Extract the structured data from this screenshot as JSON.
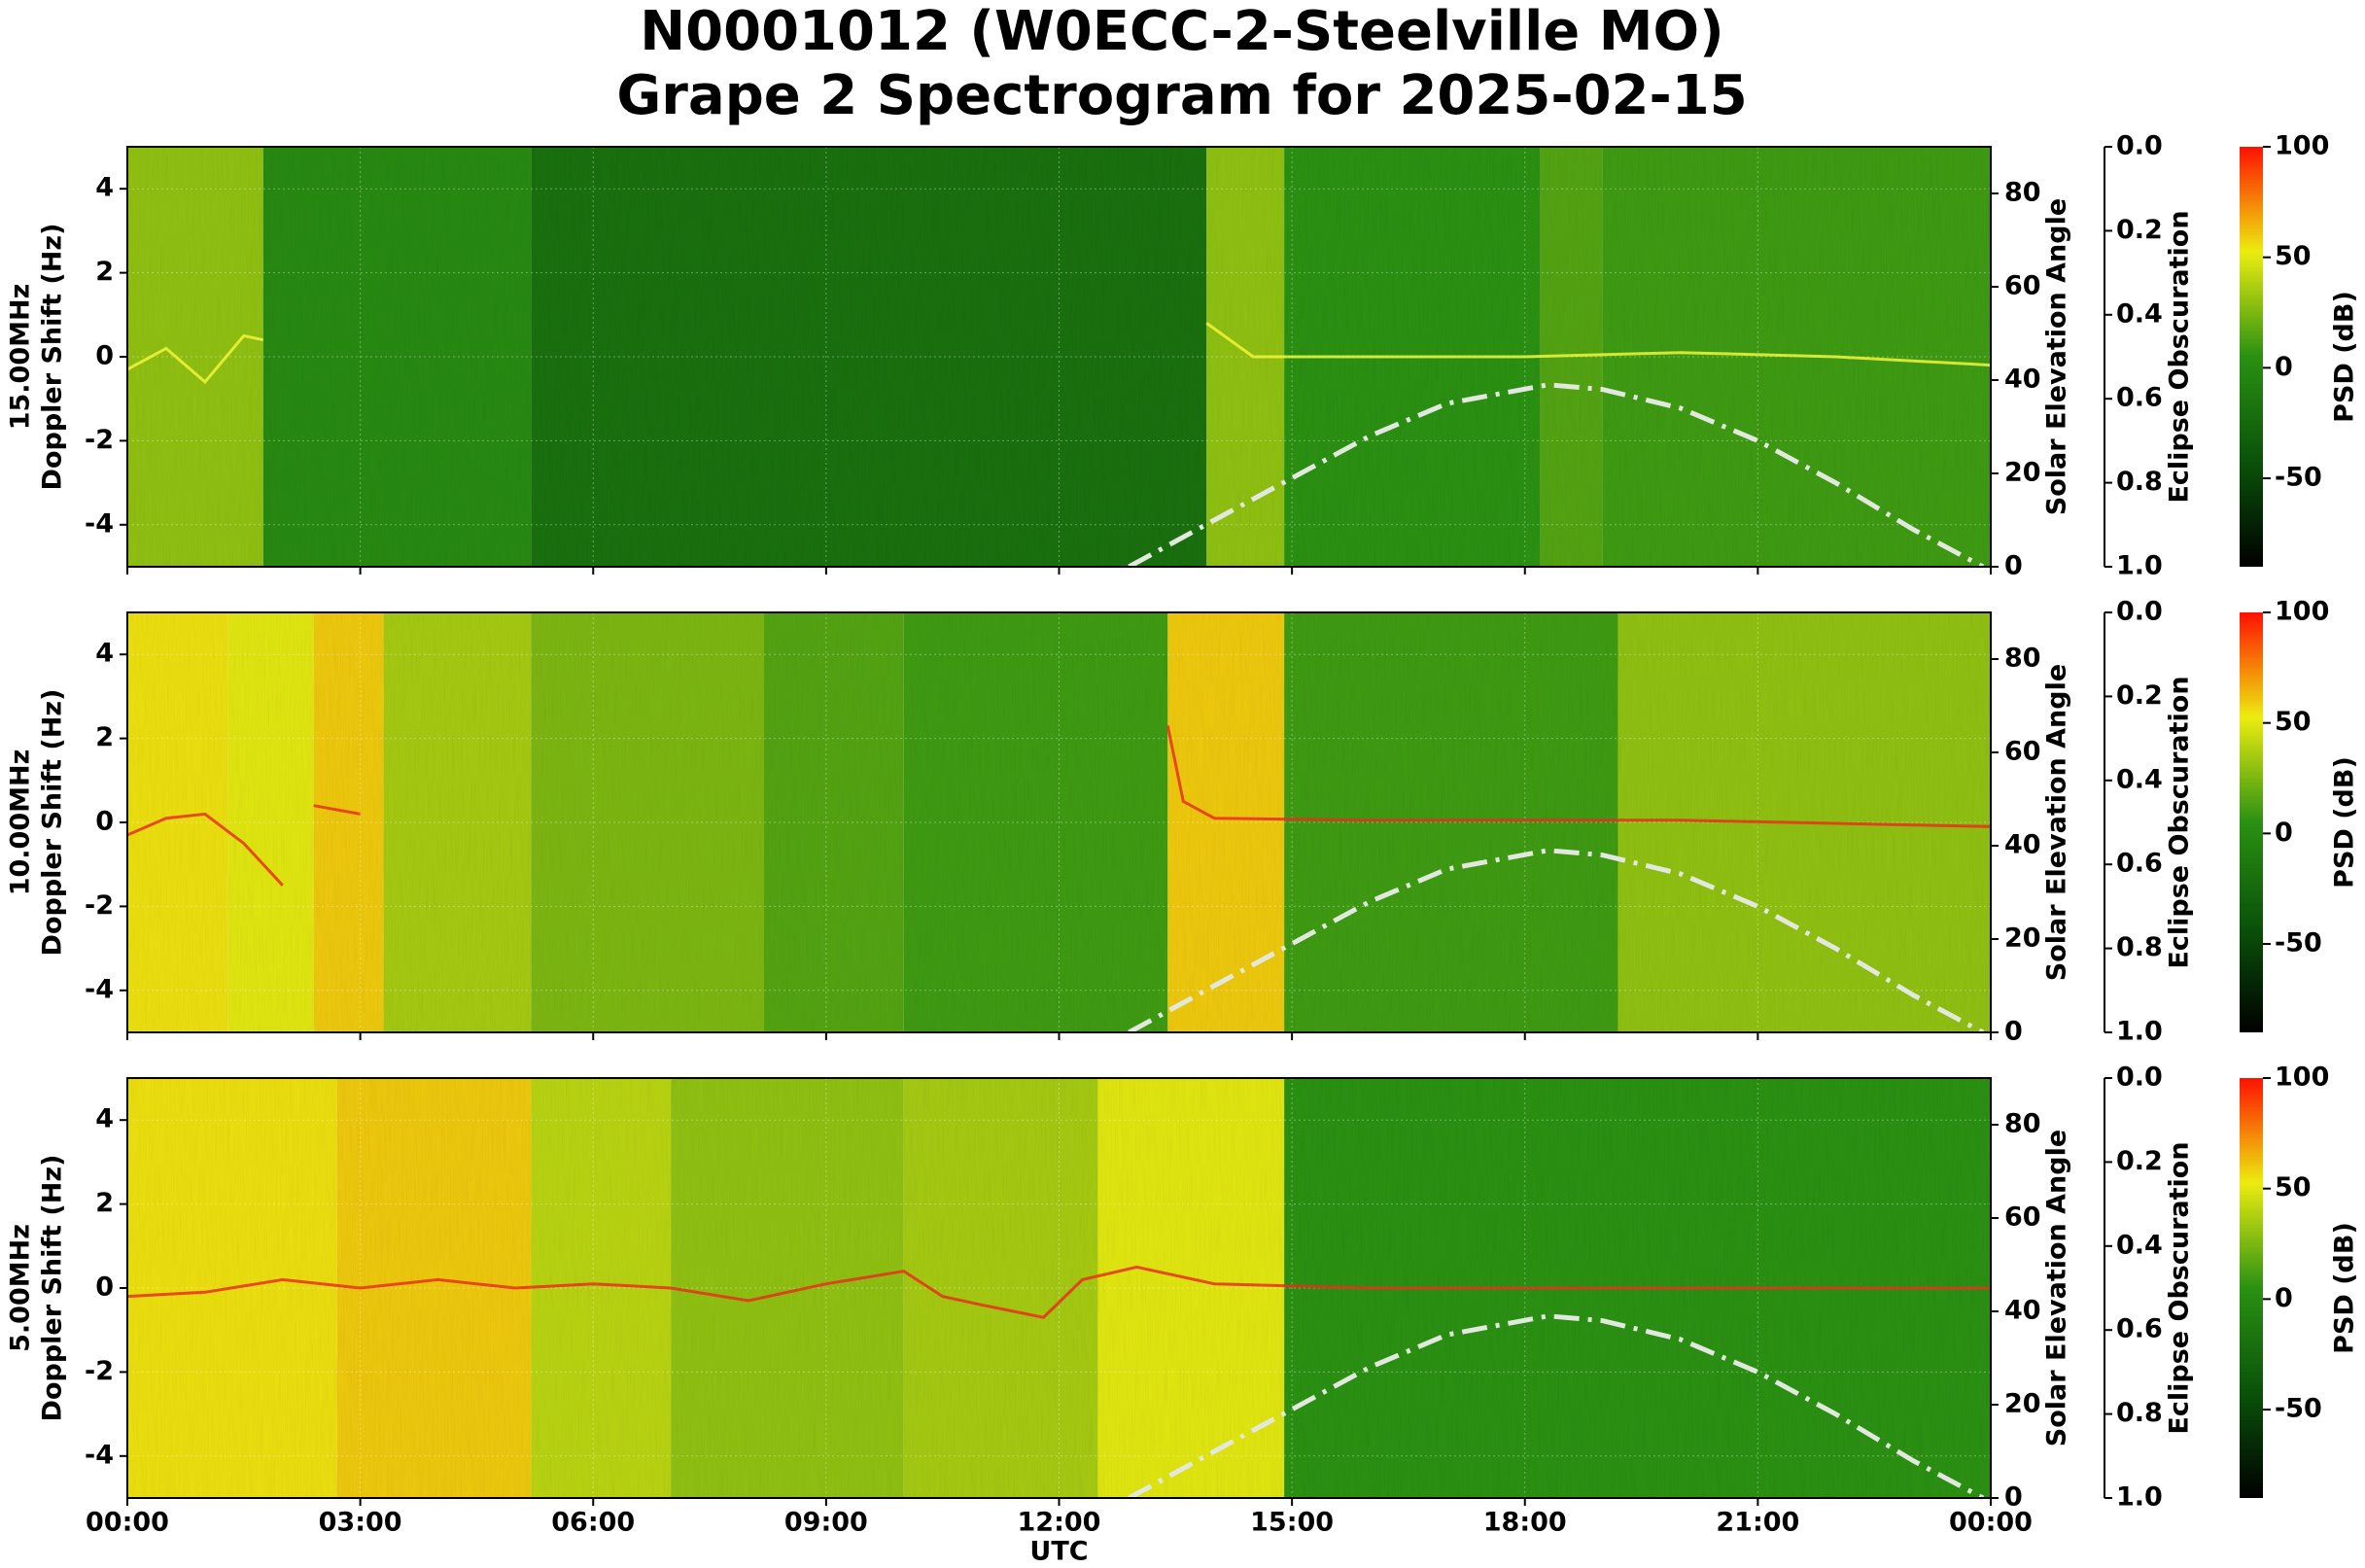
{
  "title": "N0001012 (W0ECC-2-Steelville MO)",
  "subtitle": "Grape 2 Spectrogram for 2025-02-15",
  "xlabel": "UTC",
  "xlim": [
    0,
    24
  ],
  "xticks": [
    {
      "value": 0,
      "label": "00:00"
    },
    {
      "value": 3,
      "label": "03:00"
    },
    {
      "value": 6,
      "label": "06:00"
    },
    {
      "value": 9,
      "label": "09:00"
    },
    {
      "value": 12,
      "label": "12:00"
    },
    {
      "value": 15,
      "label": "15:00"
    },
    {
      "value": 18,
      "label": "18:00"
    },
    {
      "value": 21,
      "label": "21:00"
    },
    {
      "value": 24,
      "label": "00:00"
    }
  ],
  "chart_data": [
    {
      "type": "spectrogram",
      "panel_label": "15.00MHz",
      "ylabel": "Doppler Shift (Hz)",
      "ylim": [
        -5,
        5
      ],
      "yticks": [
        -4,
        -2,
        0,
        2,
        4
      ],
      "grid": true,
      "segment_edges": [
        0,
        1.75,
        5.2,
        13.9,
        14.9,
        18.2,
        19,
        24
      ],
      "segment_psd": [
        30,
        0,
        -20,
        30,
        5,
        15,
        10
      ],
      "trace_x": [
        0,
        0.5,
        1,
        1.5,
        1.75,
        2,
        13.9,
        14.5,
        16,
        18,
        20,
        22,
        24
      ],
      "trace_y": [
        -0.3,
        0.2,
        -0.6,
        0.5,
        0.4,
        null,
        0.8,
        0,
        0,
        0,
        0.1,
        0,
        -0.2
      ],
      "trace_color": "#f2f53a",
      "y2label": "Solar Elevation Angle",
      "y2lim": [
        0,
        90
      ],
      "y2ticks": [
        0,
        20,
        40,
        60,
        80
      ],
      "elevation_x": [
        12.9,
        14,
        15,
        16,
        17,
        18.3,
        19,
        20,
        21,
        22,
        23,
        23.9
      ],
      "elevation": [
        0,
        10,
        19,
        28,
        35,
        39,
        38,
        34,
        27,
        18,
        8,
        0
      ],
      "elevation_color": "#e3e8df",
      "y3label": "Eclipse Obscuration",
      "y3lim": [
        1,
        0
      ],
      "y3ticks": [
        {
          "value": 0,
          "label": "0.0"
        },
        {
          "value": 0.2,
          "label": "0.2"
        },
        {
          "value": 0.4,
          "label": "0.4"
        },
        {
          "value": 0.6,
          "label": "0.6"
        },
        {
          "value": 0.8,
          "label": "0.8"
        },
        {
          "value": 1,
          "label": "1.0"
        }
      ],
      "clabel": "PSD (dB)",
      "clim": [
        -90,
        100
      ],
      "cticks": [
        -50,
        0,
        50,
        100
      ],
      "colormap": [
        "#000000",
        "#0a520a",
        "#2a9112",
        "#ecec10",
        "#ff1100"
      ]
    },
    {
      "type": "spectrogram",
      "panel_label": "10.00MHz",
      "ylabel": "Doppler Shift (Hz)",
      "ylim": [
        -5,
        5
      ],
      "yticks": [
        -4,
        -2,
        0,
        2,
        4
      ],
      "grid": true,
      "segment_edges": [
        0,
        1.3,
        2.4,
        3.3,
        5.2,
        8.2,
        10,
        13.4,
        14.9,
        19.2,
        24
      ],
      "segment_psd": [
        55,
        50,
        60,
        35,
        25,
        15,
        10,
        60,
        10,
        30
      ],
      "trace_x": [
        0,
        0.5,
        1,
        1.5,
        2,
        2.2,
        2.4,
        3,
        3.3,
        13.4,
        13.6,
        14,
        16,
        20,
        24
      ],
      "trace_y": [
        -0.3,
        0.1,
        0.2,
        -0.5,
        -1.5,
        null,
        0.4,
        0.2,
        null,
        2.3,
        0.5,
        0.1,
        0.05,
        0.05,
        -0.1
      ],
      "trace_color": "#e8301c",
      "y2label": "Solar Elevation Angle",
      "y2lim": [
        0,
        90
      ],
      "y2ticks": [
        0,
        20,
        40,
        60,
        80
      ],
      "elevation_x": [
        12.9,
        14,
        15,
        16,
        17,
        18.3,
        19,
        20,
        21,
        22,
        23,
        23.9
      ],
      "elevation": [
        0,
        10,
        19,
        28,
        35,
        39,
        38,
        34,
        27,
        18,
        8,
        0
      ],
      "elevation_color": "#e3e8df",
      "y3label": "Eclipse Obscuration",
      "y3lim": [
        1,
        0
      ],
      "y3ticks": [
        {
          "value": 0,
          "label": "0.0"
        },
        {
          "value": 0.2,
          "label": "0.2"
        },
        {
          "value": 0.4,
          "label": "0.4"
        },
        {
          "value": 0.6,
          "label": "0.6"
        },
        {
          "value": 0.8,
          "label": "0.8"
        },
        {
          "value": 1,
          "label": "1.0"
        }
      ],
      "clabel": "PSD (dB)",
      "clim": [
        -90,
        100
      ],
      "cticks": [
        -50,
        0,
        50,
        100
      ],
      "colormap": [
        "#000000",
        "#0a520a",
        "#2a9112",
        "#ecec10",
        "#ff1100"
      ]
    },
    {
      "type": "spectrogram",
      "panel_label": "5.00MHz",
      "ylabel": "Doppler Shift (Hz)",
      "ylim": [
        -5,
        5
      ],
      "yticks": [
        -4,
        -2,
        0,
        2,
        4
      ],
      "grid": true,
      "segment_edges": [
        0,
        2.7,
        5.2,
        7,
        10,
        12.5,
        14.9,
        24
      ],
      "segment_psd": [
        55,
        60,
        40,
        30,
        35,
        50,
        5
      ],
      "trace_x": [
        0,
        1,
        2,
        3,
        4,
        5,
        6,
        7,
        8,
        9,
        10,
        10.5,
        11,
        11.8,
        12.3,
        13,
        14,
        16,
        24
      ],
      "trace_y": [
        -0.2,
        -0.1,
        0.2,
        0,
        0.2,
        0,
        0.1,
        0,
        -0.3,
        0.1,
        0.4,
        -0.2,
        -0.4,
        -0.7,
        0.2,
        0.5,
        0.1,
        0,
        0
      ],
      "trace_color": "#e8301c",
      "y2label": "Solar Elevation Angle",
      "y2lim": [
        0,
        90
      ],
      "y2ticks": [
        0,
        20,
        40,
        60,
        80
      ],
      "elevation_x": [
        12.9,
        14,
        15,
        16,
        17,
        18.3,
        19,
        20,
        21,
        22,
        23,
        23.9
      ],
      "elevation": [
        0,
        10,
        19,
        28,
        35,
        39,
        38,
        34,
        27,
        18,
        8,
        0
      ],
      "elevation_color": "#e3e8df",
      "y3label": "Eclipse Obscuration",
      "y3lim": [
        1,
        0
      ],
      "y3ticks": [
        {
          "value": 0,
          "label": "0.0"
        },
        {
          "value": 0.2,
          "label": "0.2"
        },
        {
          "value": 0.4,
          "label": "0.4"
        },
        {
          "value": 0.6,
          "label": "0.6"
        },
        {
          "value": 0.8,
          "label": "0.8"
        },
        {
          "value": 1,
          "label": "1.0"
        }
      ],
      "clabel": "PSD (dB)",
      "clim": [
        -90,
        100
      ],
      "cticks": [
        -50,
        0,
        50,
        100
      ],
      "colormap": [
        "#000000",
        "#0a520a",
        "#2a9112",
        "#ecec10",
        "#ff1100"
      ]
    }
  ]
}
